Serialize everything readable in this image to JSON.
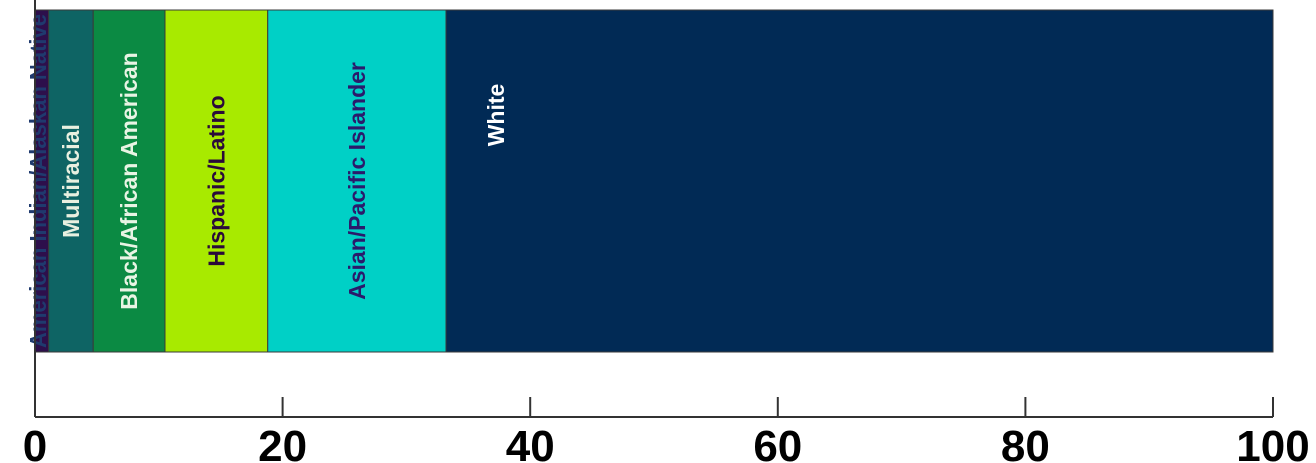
{
  "chart_data": {
    "type": "bar",
    "orientation": "horizontal",
    "stacked": true,
    "title": "",
    "xlabel": "",
    "ylabel": "",
    "xlim": [
      0,
      100
    ],
    "xticks": [
      0,
      20,
      40,
      60,
      80,
      100
    ],
    "grid": false,
    "legend": "none",
    "segments": [
      {
        "label": "American Indian/Alaskan Native",
        "value": 1.1,
        "color": "#2d0f4b",
        "text_color": "#1f3a6e"
      },
      {
        "label": "Multiracial",
        "value": 3.6,
        "color": "#0e6464",
        "text_color": "#e8f0e0"
      },
      {
        "label": "Black/African American",
        "value": 5.8,
        "color": "#0b8a43",
        "text_color": "#e8f4e4"
      },
      {
        "label": "Hispanic/Latino",
        "value": 8.3,
        "color": "#a8ea00",
        "text_color": "#2a0a3a"
      },
      {
        "label": "Asian/Pacific Islander",
        "value": 14.4,
        "color": "#00d0c6",
        "text_color": "#2b1a6b"
      },
      {
        "label": "White",
        "value": 66.8,
        "color": "#012a55",
        "text_color": "#ffffff"
      }
    ]
  }
}
